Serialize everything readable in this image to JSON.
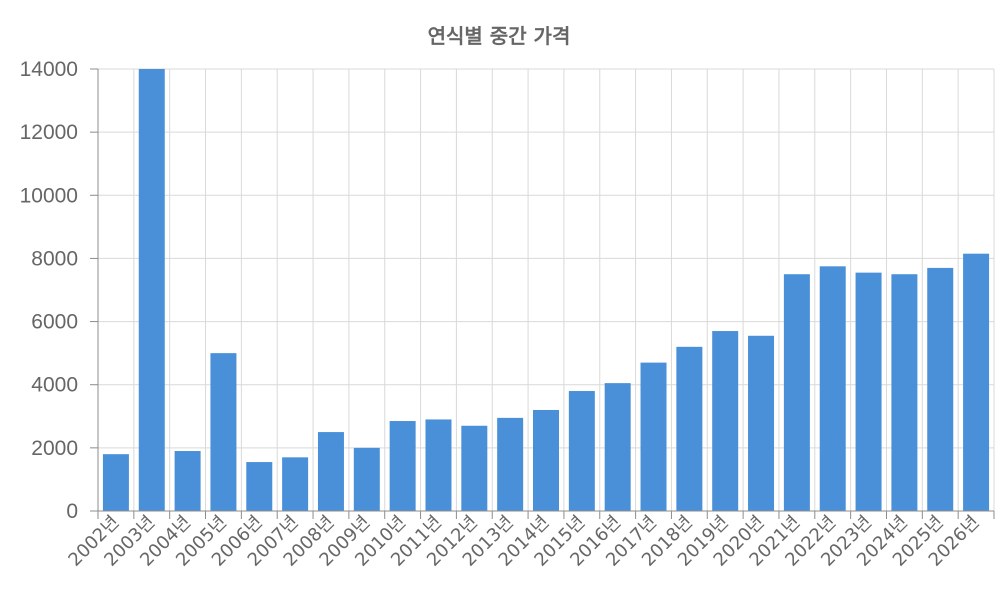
{
  "chart_data": {
    "type": "bar",
    "title": "연식별 중간 가격",
    "xlabel": "",
    "ylabel": "",
    "categories": [
      "2002년",
      "2003년",
      "2004년",
      "2005년",
      "2006년",
      "2007년",
      "2008년",
      "2009년",
      "2010년",
      "2011년",
      "2012년",
      "2013년",
      "2014년",
      "2015년",
      "2016년",
      "2017년",
      "2018년",
      "2019년",
      "2020년",
      "2021년",
      "2022년",
      "2023년",
      "2024년",
      "2025년",
      "2026년"
    ],
    "values": [
      1800,
      14000,
      1900,
      5000,
      1550,
      1700,
      2500,
      2000,
      2850,
      2900,
      2700,
      2950,
      3200,
      3800,
      4050,
      4700,
      5200,
      5700,
      5550,
      7500,
      7750,
      7550,
      7500,
      7700,
      8150
    ],
    "ylim": [
      0,
      14000
    ],
    "yticks": [
      "0",
      "2000",
      "4000",
      "6000",
      "8000",
      "10000",
      "12000",
      "14000"
    ],
    "grid": true,
    "bar_color": "#4a90d9",
    "grid_color": "#d9d9d9",
    "text_color": "#666666"
  }
}
